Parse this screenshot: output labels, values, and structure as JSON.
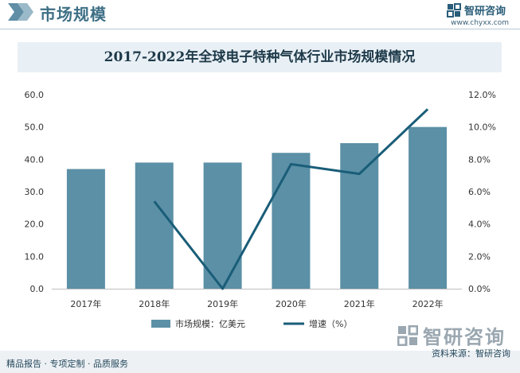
{
  "header": {
    "title": "市场规模",
    "brand_name": "智研咨询",
    "brand_url": "www.chyxx.com"
  },
  "footer": {
    "left_text": "精品报告 · 专项定制 · 品质服务",
    "source": "资料来源：智研咨询",
    "brand_name": "智研咨询"
  },
  "colors": {
    "bar": "#5b90a6",
    "line": "#1a5d78",
    "title_bg": "#e9f0f5",
    "accent": "#3e6f86"
  },
  "chart_data": {
    "type": "bar",
    "title": "2017-2022年全球电子特种气体行业市场规模情况",
    "categories": [
      "2017年",
      "2018年",
      "2019年",
      "2020年",
      "2021年",
      "2022年"
    ],
    "series": [
      {
        "name": "市场规模：亿美元",
        "type": "bar",
        "axis": "left",
        "values": [
          37.0,
          39.0,
          39.0,
          42.0,
          45.0,
          50.0
        ]
      },
      {
        "name": "增速（%）",
        "type": "line",
        "axis": "right",
        "values": [
          null,
          5.4,
          0.0,
          7.7,
          7.1,
          11.1
        ]
      }
    ],
    "y_left": {
      "min": 0,
      "max": 60,
      "ticks": [
        "0.0",
        "10.0",
        "20.0",
        "30.0",
        "40.0",
        "50.0",
        "60.0"
      ]
    },
    "y_right": {
      "min": 0,
      "max": 12,
      "ticks": [
        "0.0%",
        "2.0%",
        "4.0%",
        "6.0%",
        "8.0%",
        "10.0%",
        "12.0%"
      ]
    },
    "grid": false,
    "legend": "bottom-center"
  }
}
